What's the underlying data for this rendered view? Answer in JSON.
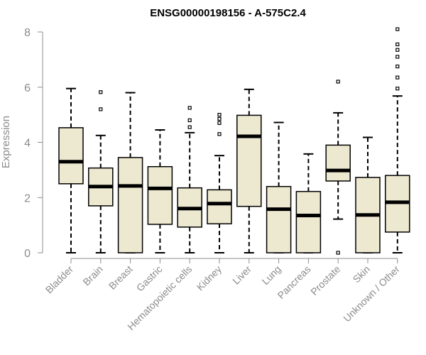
{
  "chart_data": {
    "type": "boxplot",
    "title": "ENSG00000198156 - A-575C2.4",
    "xlabel": "",
    "ylabel": "Expression",
    "ylim": [
      0,
      8
    ],
    "yticks": [
      0,
      2,
      4,
      6,
      8
    ],
    "grid": false,
    "box_color": "#ede8d0",
    "categories": [
      "Bladder",
      "Brain",
      "Breast",
      "Gastric",
      "Hematopoietic cells",
      "Kidney",
      "Liver",
      "Lung",
      "Pancreas",
      "Prostate",
      "Skin",
      "Unknown / Other"
    ],
    "boxes": [
      {
        "name": "Bladder",
        "whisker_low": 0,
        "q1": 2.5,
        "median": 3.3,
        "q3": 4.53,
        "whisker_high": 5.95,
        "outliers": []
      },
      {
        "name": "Brain",
        "whisker_low": 0,
        "q1": 1.7,
        "median": 2.4,
        "q3": 3.07,
        "whisker_high": 4.25,
        "outliers": [
          5.2,
          5.82
        ]
      },
      {
        "name": "Breast",
        "whisker_low": 0,
        "q1": 0,
        "median": 2.42,
        "q3": 3.45,
        "whisker_high": 5.8,
        "outliers": []
      },
      {
        "name": "Gastric",
        "whisker_low": 0,
        "q1": 1.03,
        "median": 2.33,
        "q3": 3.12,
        "whisker_high": 4.45,
        "outliers": []
      },
      {
        "name": "Hematopoietic cells",
        "whisker_low": 0,
        "q1": 0.93,
        "median": 1.6,
        "q3": 2.35,
        "whisker_high": 4.35,
        "outliers": [
          4.55,
          4.8,
          5.25
        ]
      },
      {
        "name": "Kidney",
        "whisker_low": 0,
        "q1": 1.05,
        "median": 1.78,
        "q3": 2.28,
        "whisker_high": 3.52,
        "outliers": [
          4.3,
          4.7,
          4.85,
          5.0
        ]
      },
      {
        "name": "Liver",
        "whisker_low": 0,
        "q1": 1.68,
        "median": 4.22,
        "q3": 4.98,
        "whisker_high": 5.92,
        "outliers": []
      },
      {
        "name": "Lung",
        "whisker_low": 0,
        "q1": 0,
        "median": 1.58,
        "q3": 2.4,
        "whisker_high": 4.72,
        "outliers": []
      },
      {
        "name": "Pancreas",
        "whisker_low": 0,
        "q1": 0,
        "median": 1.35,
        "q3": 2.22,
        "whisker_high": 3.58,
        "outliers": []
      },
      {
        "name": "Prostate",
        "whisker_low": 1.22,
        "q1": 2.6,
        "median": 2.98,
        "q3": 3.9,
        "whisker_high": 5.07,
        "outliers": [
          0,
          6.2
        ]
      },
      {
        "name": "Skin",
        "whisker_low": 0,
        "q1": 0,
        "median": 1.37,
        "q3": 2.73,
        "whisker_high": 4.18,
        "outliers": []
      },
      {
        "name": "Unknown / Other",
        "whisker_low": 0,
        "q1": 0.75,
        "median": 1.83,
        "q3": 2.8,
        "whisker_high": 5.68,
        "outliers": [
          5.95,
          6.35,
          6.75,
          7.1,
          7.35,
          7.55,
          8.1
        ]
      }
    ]
  }
}
